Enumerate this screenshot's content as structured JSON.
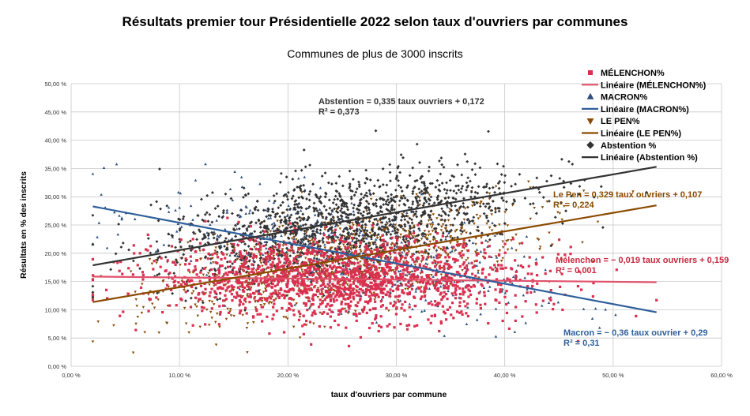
{
  "chart_data": {
    "type": "scatter",
    "title": "Résultats premier tour Présidentielle 2022 selon taux d'ouvriers par communes",
    "subtitle": "Communes de plus de 3000 inscrits",
    "xlabel": "taux d'ouvriers par commune",
    "ylabel": "Résultats en % des inscrits",
    "xlim": [
      0,
      0.6
    ],
    "ylim": [
      0,
      0.5
    ],
    "x_ticks": [
      "0,00 %",
      "10,00 %",
      "20,00 %",
      "30,00 %",
      "40,00 %",
      "50,00 %",
      "60,00 %"
    ],
    "y_ticks": [
      "0,00 %",
      "5,00 %",
      "10,00 %",
      "15,00 %",
      "20,00 %",
      "25,00 %",
      "30,00 %",
      "35,00 %",
      "40,00 %",
      "45,00 %",
      "50,00 %"
    ],
    "grid": true,
    "legend_position": "top-right",
    "x_range_points": [
      0.02,
      0.54
    ],
    "series": [
      {
        "name": "MÉLENCHON%",
        "marker": "square",
        "color": "#d9304f",
        "trend": {
          "slope": -0.019,
          "intercept": 0.159,
          "r2": 0.001,
          "name": "Linéaire (MÉLENCHON%)",
          "color": "#e0516a"
        }
      },
      {
        "name": "MACRON%",
        "marker": "triangle-up",
        "color": "#2f4f7f",
        "trend": {
          "slope": -0.36,
          "intercept": 0.29,
          "r2": 0.31,
          "name": "Linéaire (MACRON%)",
          "color": "#2e5f9a"
        }
      },
      {
        "name": "LE PEN%",
        "marker": "triangle-down",
        "color": "#8a4a05",
        "trend": {
          "slope": 0.329,
          "intercept": 0.107,
          "r2": 0.224,
          "name": "Linéaire (LE PEN%)",
          "color": "#8b4a00"
        }
      },
      {
        "name": "Abstention %",
        "marker": "diamond",
        "color": "#333333",
        "trend": {
          "slope": 0.335,
          "intercept": 0.172,
          "r2": 0.373,
          "name": "Linéaire (Abstention %)",
          "color": "#333333"
        }
      }
    ],
    "annotations": [
      {
        "id": "abstention",
        "line1": "Abstention = 0,335 taux ouvriers + 0,172",
        "line2": "R² = 0,373",
        "color": "#333333"
      },
      {
        "id": "lepen",
        "line1": "Le Pen = 0,329 taux ouvriers + 0,107",
        "line2": "R² = 0,224",
        "color": "#8b4a00"
      },
      {
        "id": "melenchon",
        "line1": "Mélenchon = − 0,019 taux ouvriers + 0,159",
        "line2": "R² = 0,001",
        "color": "#c8283f"
      },
      {
        "id": "macron",
        "line1": "Macron = − 0,36 taux ouvrier + 0,29",
        "line2": "R² = 0,31",
        "color": "#2e5f9a"
      }
    ]
  }
}
